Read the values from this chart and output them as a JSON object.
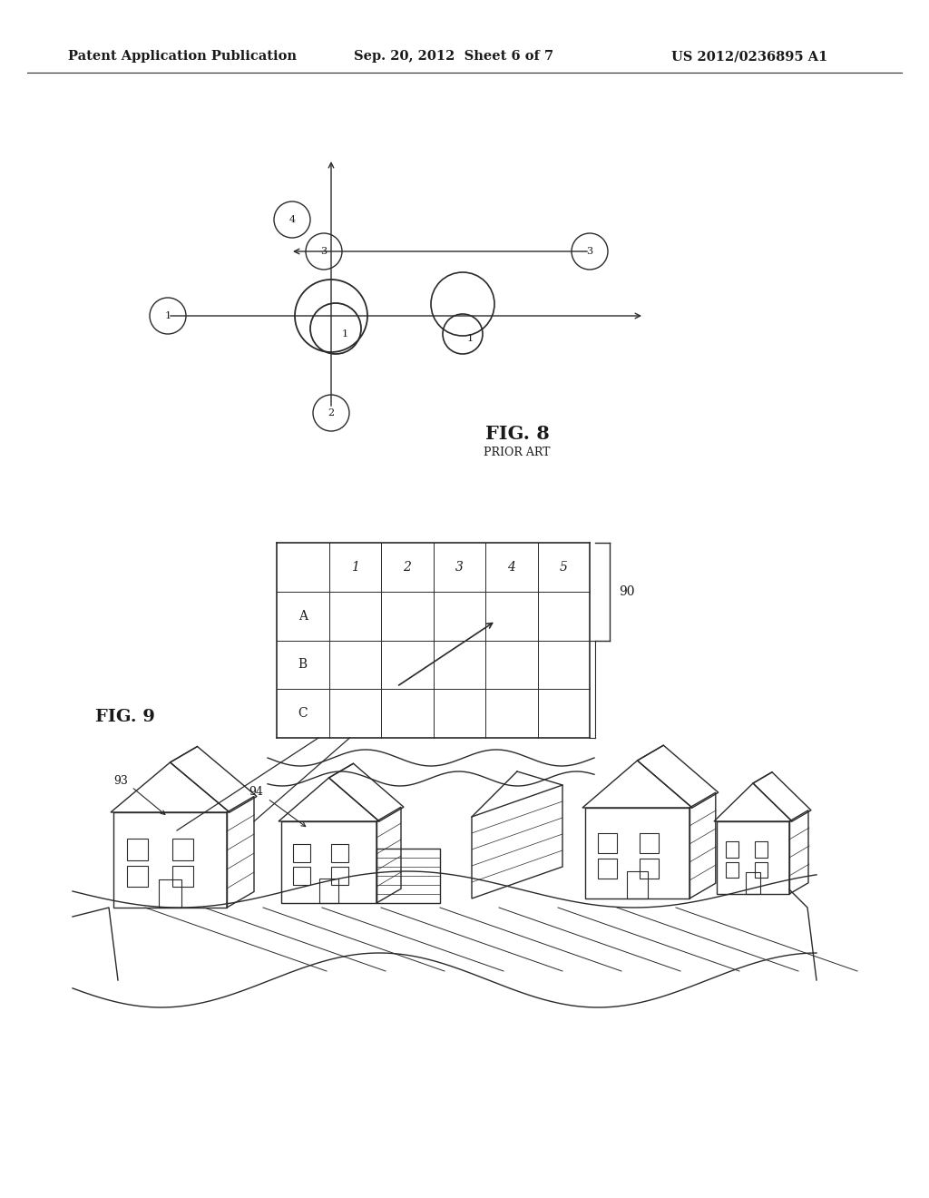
{
  "header_left": "Patent Application Publication",
  "header_mid": "Sep. 20, 2012  Sheet 6 of 7",
  "header_right": "US 2012/0236895 A1",
  "fig8_title": "FIG. 8",
  "fig8_subtitle": "PRIOR ART",
  "fig9_label": "FIG. 9",
  "background_color": "#ffffff",
  "text_color": "#1a1a1a",
  "line_color": "#2a2a2a"
}
